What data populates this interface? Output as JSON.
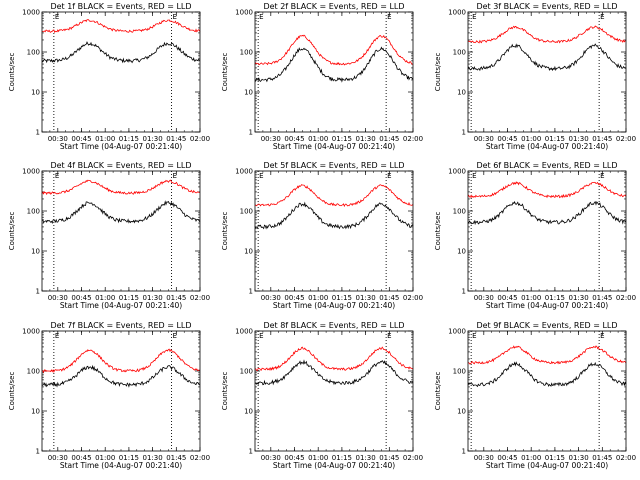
{
  "chart_data": {
    "type": "line",
    "shared": {
      "ylabel": "Counts/sec",
      "yscale": "log",
      "ylim": [
        1,
        1000
      ],
      "yticks": [
        "1",
        "10",
        "100",
        "1000"
      ],
      "xlabel": "Start Time (04-Aug-07 00:21:40)",
      "xlim_minutes_after_0020": [
        0,
        100
      ],
      "xtick_labels": [
        "00:30",
        "00:45",
        "01:00",
        "01:15",
        "01:30",
        "01:45",
        "02:00"
      ],
      "xtick_minutes_after_0020": [
        10,
        25,
        40,
        55,
        70,
        85,
        100
      ],
      "marker_label": "E",
      "series_names": [
        "Events",
        "LLD"
      ],
      "series_colors": [
        "#000000",
        "#ff0000"
      ]
    },
    "panels": [
      {
        "title": "Det 1f BLACK = Events, RED = LLD",
        "markers_min": [
          7.5,
          82
        ],
        "series": [
          {
            "name": "Events",
            "base": 60,
            "peak": 165
          },
          {
            "name": "LLD",
            "base": 330,
            "peak": 620
          }
        ]
      },
      {
        "title": "Det 2f BLACK = Events, RED = LLD",
        "markers_min": [
          2,
          83
        ],
        "series": [
          {
            "name": "Events",
            "base": 20,
            "peak": 120
          },
          {
            "name": "LLD",
            "base": 50,
            "peak": 250
          }
        ]
      },
      {
        "title": "Det 3f BLACK = Events, RED = LLD",
        "markers_min": [
          2,
          83
        ],
        "series": [
          {
            "name": "Events",
            "base": 38,
            "peak": 145
          },
          {
            "name": "LLD",
            "base": 180,
            "peak": 420
          }
        ]
      },
      {
        "title": "Det 4f BLACK = Events, RED = LLD",
        "markers_min": [
          7.5,
          82
        ],
        "series": [
          {
            "name": "Events",
            "base": 55,
            "peak": 160
          },
          {
            "name": "LLD",
            "base": 280,
            "peak": 560
          }
        ]
      },
      {
        "title": "Det 5f BLACK = Events, RED = LLD",
        "markers_min": [
          2,
          83
        ],
        "series": [
          {
            "name": "Events",
            "base": 40,
            "peak": 150
          },
          {
            "name": "LLD",
            "base": 140,
            "peak": 430
          }
        ]
      },
      {
        "title": "Det 6f BLACK = Events, RED = LLD",
        "markers_min": [
          2,
          83
        ],
        "series": [
          {
            "name": "Events",
            "base": 52,
            "peak": 160
          },
          {
            "name": "LLD",
            "base": 230,
            "peak": 500
          }
        ]
      },
      {
        "title": "Det 7f BLACK = Events, RED = LLD",
        "markers_min": [
          7.5,
          82
        ],
        "series": [
          {
            "name": "Events",
            "base": 45,
            "peak": 125
          },
          {
            "name": "LLD",
            "base": 100,
            "peak": 330
          }
        ]
      },
      {
        "title": "Det 8f BLACK = Events, RED = LLD",
        "markers_min": [
          2,
          83
        ],
        "series": [
          {
            "name": "Events",
            "base": 50,
            "peak": 165
          },
          {
            "name": "LLD",
            "base": 110,
            "peak": 370
          }
        ]
      },
      {
        "title": "Det 9f BLACK = Events, RED = LLD",
        "markers_min": [
          2,
          83
        ],
        "series": [
          {
            "name": "Events",
            "base": 45,
            "peak": 150
          },
          {
            "name": "LLD",
            "base": 160,
            "peak": 400
          }
        ]
      }
    ]
  }
}
